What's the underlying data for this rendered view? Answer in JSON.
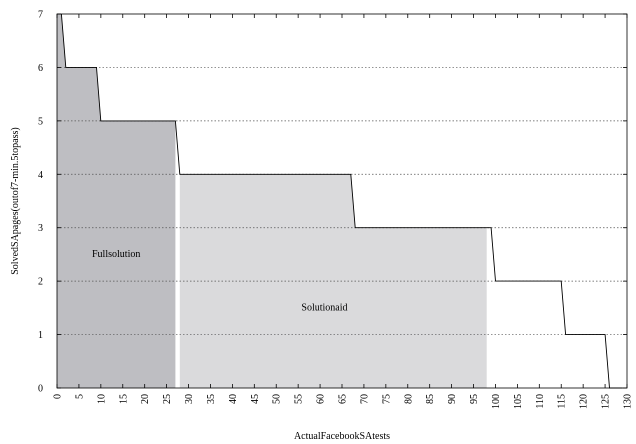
{
  "chart_data": {
    "type": "area",
    "xlabel": "ActualFacebookSAtests",
    "ylabel": "SolvedSApages(outof7-min.5topass)",
    "xlim": [
      0,
      130
    ],
    "ylim": [
      0,
      7
    ],
    "x_ticks": [
      0,
      5,
      10,
      15,
      20,
      25,
      30,
      35,
      40,
      45,
      50,
      55,
      60,
      65,
      70,
      75,
      80,
      85,
      90,
      95,
      100,
      105,
      110,
      115,
      120,
      125,
      130
    ],
    "y_ticks": [
      0,
      1,
      2,
      3,
      4,
      5,
      6,
      7
    ],
    "grid": "horizontal-dotted",
    "series": [
      {
        "x": [
          1,
          2,
          3,
          9,
          10,
          27,
          28,
          67,
          68,
          99,
          100,
          115,
          116,
          125,
          126,
          129
        ],
        "y": [
          7,
          6,
          6,
          6,
          5,
          5,
          4,
          4,
          3,
          3,
          2,
          2,
          1,
          1,
          0,
          0
        ]
      }
    ],
    "regions": [
      {
        "label": "Fullsolution",
        "x_start": 0,
        "x_end": 27,
        "color": "#bebec2"
      },
      {
        "label": "Solutionaid",
        "x_start": 28,
        "x_end": 98,
        "color": "#dadadc"
      }
    ]
  }
}
